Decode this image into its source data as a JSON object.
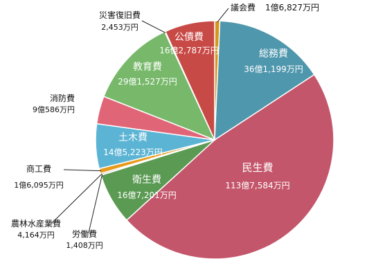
{
  "chart_data": {
    "type": "pie",
    "title": "",
    "unit": "万円",
    "slices": [
      {
        "name": "議会費",
        "value_label": "1億6,827万円",
        "value": 16827,
        "color": "#d6961c"
      },
      {
        "name": "総務費",
        "value_label": "36億1,199万円",
        "value": 361199,
        "color": "#4f97ad"
      },
      {
        "name": "民生費",
        "value_label": "113億7,584万円",
        "value": 1137584,
        "color": "#c4566b"
      },
      {
        "name": "衛生費",
        "value_label": "16億7,201万円",
        "value": 167201,
        "color": "#5a9a53"
      },
      {
        "name": "労働費",
        "value_label": "1,408万円",
        "value": 1408,
        "color": "#2f5f8f"
      },
      {
        "name": "農林水産業費",
        "value_label": "4,164万円",
        "value": 4164,
        "color": "#8e2f2f"
      },
      {
        "name": "商工費",
        "value_label": "1億6,095万円",
        "value": 16095,
        "color": "#e89b1a"
      },
      {
        "name": "土木費",
        "value_label": "14億5,223万円",
        "value": 145223,
        "color": "#5cb4d4"
      },
      {
        "name": "消防費",
        "value_label": "9億586万円",
        "value": 90586,
        "color": "#e06577"
      },
      {
        "name": "教育費",
        "value_label": "29億1,527万円",
        "value": 291527,
        "color": "#77b86a"
      },
      {
        "name": "災害復旧費",
        "value_label": "2,453万円",
        "value": 2453,
        "color": "#3a7a3a"
      },
      {
        "name": "公債費",
        "value_label": "16億2,787万円",
        "value": 162787,
        "color": "#c84a46"
      }
    ]
  }
}
